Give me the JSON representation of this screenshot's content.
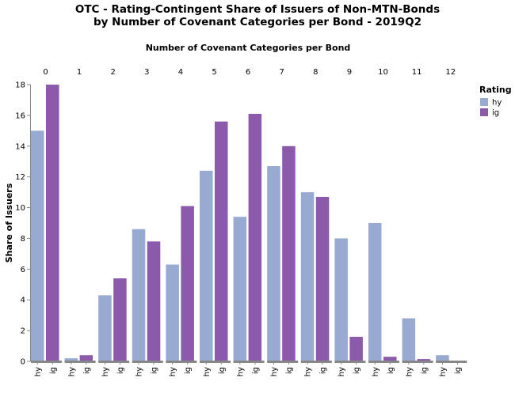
{
  "chart_data": {
    "type": "bar",
    "title_line1": "OTC - Rating-Contingent Share of Issuers of Non-MTN-Bonds",
    "title_line2": "by Number of Covenant Categories per Bond - 2019Q2",
    "column_axis_title": "Number of Covenant Categories per Bond",
    "ylabel": "Share of Issuers",
    "ylim": [
      0,
      18
    ],
    "yticks": [
      0,
      2,
      4,
      6,
      8,
      10,
      12,
      14,
      16,
      18
    ],
    "grid": false,
    "groups": [
      "0",
      "1",
      "2",
      "3",
      "4",
      "5",
      "6",
      "7",
      "8",
      "9",
      "10",
      "11",
      "12"
    ],
    "series": [
      {
        "name": "hy",
        "color": "#98a9d2",
        "values": [
          15.0,
          0.2,
          4.3,
          8.6,
          6.3,
          12.4,
          9.4,
          12.7,
          11.0,
          8.0,
          9.0,
          2.8,
          0.4
        ]
      },
      {
        "name": "ig",
        "color": "#8c5aaa",
        "values": [
          18.0,
          0.4,
          5.4,
          7.8,
          10.1,
          15.6,
          16.1,
          14.0,
          10.7,
          1.6,
          0.3,
          0.15,
          0.0
        ]
      }
    ],
    "legend": {
      "title": "Rating",
      "position": "top-right"
    }
  }
}
